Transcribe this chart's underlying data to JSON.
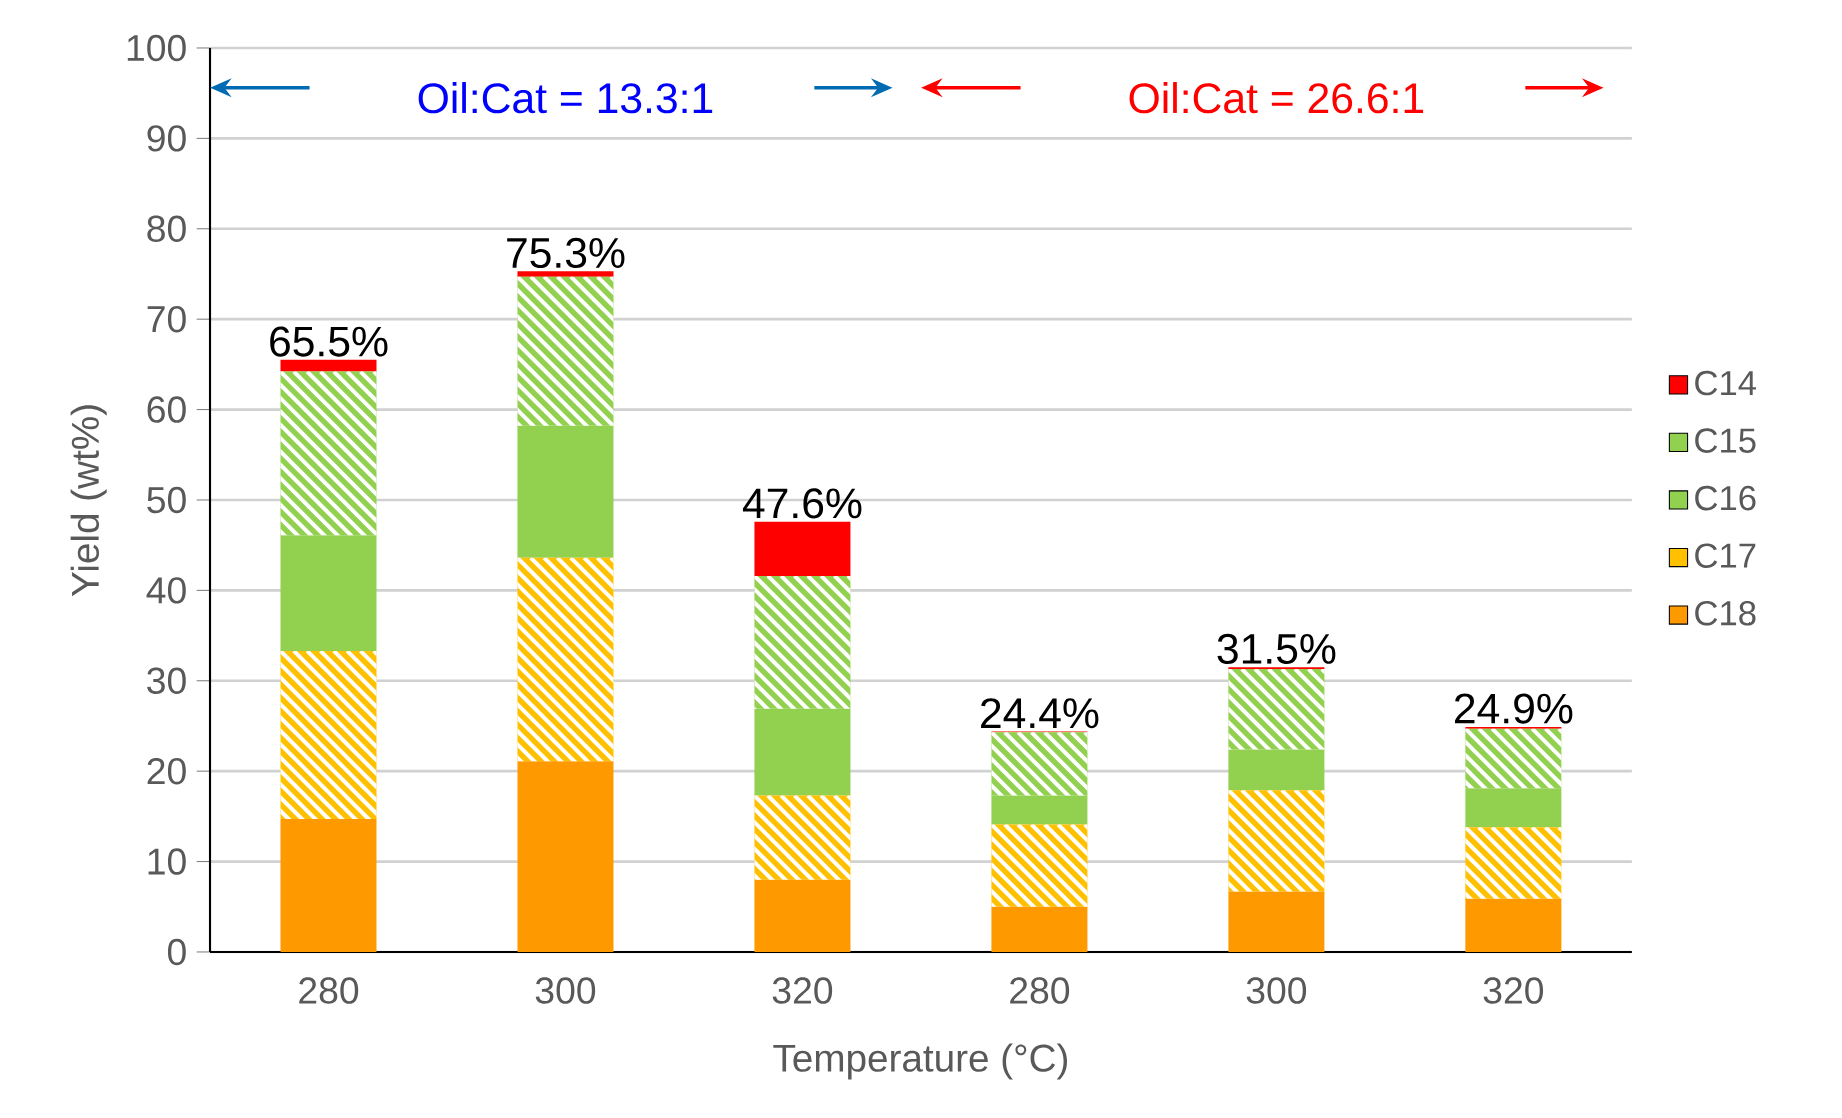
{
  "chart_data": {
    "type": "bar",
    "stacked": true,
    "xlabel": "Temperature (°C)",
    "ylabel": "Yield (wt%)",
    "categories": [
      "280",
      "300",
      "320",
      "280",
      "300",
      "320"
    ],
    "series": [
      {
        "name": "C18",
        "color": "#ff9900",
        "values": [
          14.7,
          21.1,
          8.0,
          5.0,
          6.7,
          5.9
        ]
      },
      {
        "name": "C17",
        "color": "#ffc000",
        "values": [
          18.6,
          22.5,
          9.3,
          9.1,
          11.2,
          7.9
        ]
      },
      {
        "name": "C16",
        "color": "#92d050",
        "values": [
          12.8,
          14.6,
          9.6,
          3.2,
          4.5,
          4.3
        ]
      },
      {
        "name": "C15",
        "color": "#92d050",
        "values": [
          18.1,
          16.5,
          14.7,
          7.0,
          8.9,
          6.6
        ]
      },
      {
        "name": "C14",
        "color": "#ff0000",
        "values": [
          1.3,
          0.6,
          6.0,
          0.1,
          0.2,
          0.2
        ]
      }
    ],
    "totals": [
      "65.5%",
      "75.3%",
      "47.6%",
      "24.4%",
      "31.5%",
      "24.9%"
    ],
    "annotations": [
      "Oil:Cat = 13.3:1",
      "Oil:Cat = 26.6:1"
    ],
    "ylim": [
      0,
      100
    ],
    "yticks": [
      0,
      10,
      20,
      30,
      40,
      50,
      60,
      70,
      80,
      90,
      100
    ],
    "grid": "y",
    "legend": "right"
  }
}
